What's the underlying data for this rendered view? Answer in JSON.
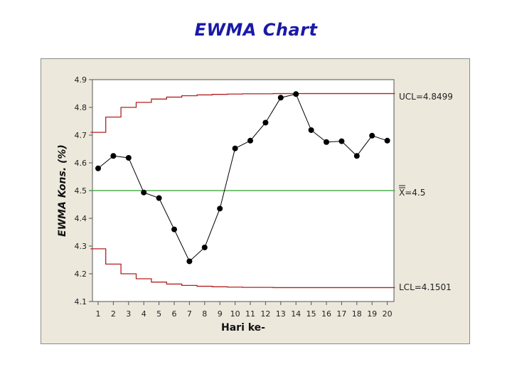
{
  "slide": {
    "title": "EWMA Chart"
  },
  "colors": {
    "limit": "#b22222",
    "center": "#2ca02c",
    "series": "#000000",
    "title": "#1a1aa6"
  },
  "chart_data": {
    "type": "line",
    "title": "EWMA Chart",
    "xlabel": "Hari ke-",
    "ylabel": "EWMA Kons. (%)",
    "x": [
      1,
      2,
      3,
      4,
      5,
      6,
      7,
      8,
      9,
      10,
      11,
      12,
      13,
      14,
      15,
      16,
      17,
      18,
      19,
      20
    ],
    "x_tick_labels": [
      "1",
      "2",
      "3",
      "4",
      "5",
      "6",
      "7",
      "8",
      "9",
      "10",
      "11",
      "12",
      "13",
      "14",
      "15",
      "16",
      "17",
      "18",
      "19",
      "20"
    ],
    "ylim": [
      4.1,
      4.9
    ],
    "y_ticks": [
      4.1,
      4.2,
      4.3,
      4.4,
      4.5,
      4.6,
      4.7,
      4.8,
      4.9
    ],
    "y_tick_labels": [
      "4.1",
      "4.2",
      "4.3",
      "4.4",
      "4.5",
      "4.6",
      "4.7",
      "4.8",
      "4.9"
    ],
    "series": [
      {
        "name": "EWMA",
        "values": [
          4.58,
          4.625,
          4.618,
          4.493,
          4.473,
          4.36,
          4.245,
          4.295,
          4.435,
          4.652,
          4.68,
          4.745,
          4.835,
          4.848,
          4.718,
          4.675,
          4.678,
          4.625,
          4.698,
          4.68
        ]
      }
    ],
    "ucl": [
      4.71,
      4.765,
      4.8,
      4.818,
      4.83,
      4.837,
      4.842,
      4.845,
      4.847,
      4.848,
      4.849,
      4.849,
      4.8499,
      4.8499,
      4.8499,
      4.8499,
      4.8499,
      4.8499,
      4.8499,
      4.8499
    ],
    "lcl": [
      4.29,
      4.235,
      4.2,
      4.182,
      4.17,
      4.163,
      4.158,
      4.155,
      4.153,
      4.152,
      4.151,
      4.151,
      4.1501,
      4.1501,
      4.1501,
      4.1501,
      4.1501,
      4.1501,
      4.1501,
      4.1501
    ],
    "center": 4.5,
    "labels": {
      "ucl": "UCL=4.8499",
      "center_symbol": "X",
      "center_value": "=4.5",
      "lcl": "LCL=4.1501"
    },
    "grid": false
  }
}
